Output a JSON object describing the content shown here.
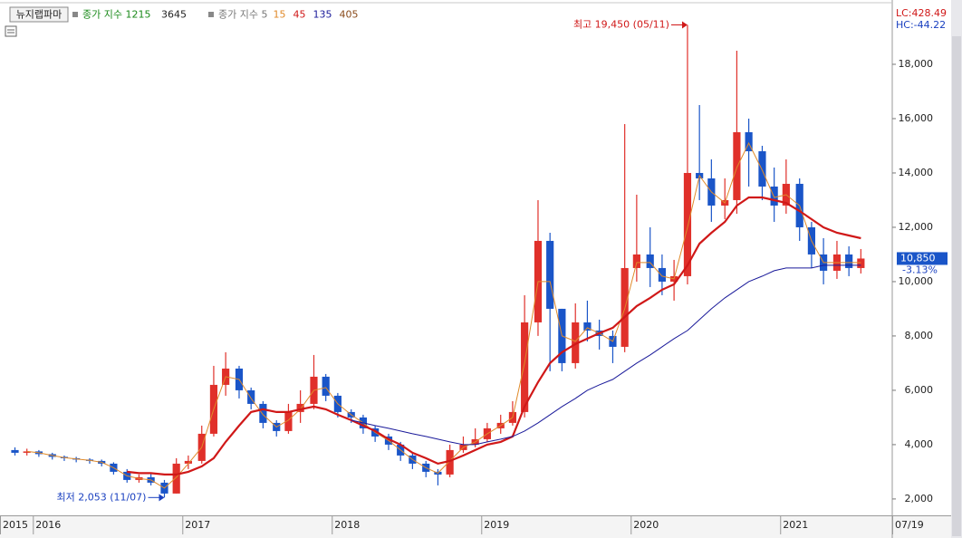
{
  "chart_data": {
    "type": "candlestick",
    "header": {
      "symbol": "뉴지랩파마",
      "index_label": "종가 지수 1215",
      "index_extra": "3645",
      "ma_label": "종가 지수 5",
      "extra_period": "405",
      "extra_period_color": "#8a4b1a"
    },
    "lc_label": "LC:428.49",
    "hc_label": "HC:-44.22",
    "annotations": {
      "high": "최고 19,450 (05/11)",
      "low": "최저 2,053 (11/07)"
    },
    "last_price_label": "10,850",
    "change_label": "-3.13%",
    "up_color": "#e0302a",
    "down_color": "#1a55c8",
    "x": [
      2015.88,
      2015.96,
      2016.04,
      2016.13,
      2016.21,
      2016.29,
      2016.38,
      2016.46,
      2016.54,
      2016.63,
      2016.71,
      2016.79,
      2016.88,
      2016.96,
      2017.04,
      2017.13,
      2017.21,
      2017.29,
      2017.38,
      2017.46,
      2017.54,
      2017.63,
      2017.71,
      2017.79,
      2017.88,
      2017.96,
      2018.04,
      2018.13,
      2018.21,
      2018.29,
      2018.38,
      2018.46,
      2018.54,
      2018.63,
      2018.71,
      2018.79,
      2018.88,
      2018.96,
      2019.04,
      2019.13,
      2019.21,
      2019.29,
      2019.38,
      2019.46,
      2019.54,
      2019.63,
      2019.71,
      2019.79,
      2019.88,
      2019.96,
      2020.04,
      2020.13,
      2020.21,
      2020.29,
      2020.38,
      2020.46,
      2020.54,
      2020.63,
      2020.71,
      2020.79,
      2020.88,
      2020.96,
      2021.04,
      2021.13,
      2021.21,
      2021.29,
      2021.38,
      2021.46,
      2021.54
    ],
    "open": [
      3800,
      3700,
      3750,
      3650,
      3550,
      3500,
      3450,
      3400,
      3300,
      3000,
      2700,
      2800,
      2600,
      2200,
      3300,
      3400,
      4400,
      6200,
      6800,
      6000,
      5500,
      4800,
      4500,
      5200,
      5500,
      6500,
      5800,
      5200,
      5000,
      4600,
      4300,
      4000,
      3600,
      3300,
      3000,
      2900,
      3800,
      4000,
      4200,
      4600,
      4800,
      5200,
      8500,
      11500,
      9000,
      7000,
      8500,
      8200,
      8000,
      7600,
      10500,
      11000,
      10500,
      10000,
      10200,
      14000,
      13800,
      12800,
      13000,
      15500,
      14800,
      13500,
      12800,
      13600,
      12000,
      11000,
      10400,
      11000,
      10500
    ],
    "high": [
      3900,
      3850,
      3800,
      3700,
      3600,
      3550,
      3500,
      3450,
      3350,
      3100,
      2900,
      2950,
      2700,
      3500,
      3600,
      4700,
      6900,
      7400,
      6900,
      6100,
      5600,
      4900,
      5500,
      6000,
      7300,
      6600,
      5900,
      5300,
      5100,
      4700,
      4400,
      4100,
      3700,
      3400,
      3100,
      4000,
      4300,
      4600,
      4800,
      5100,
      5600,
      9500,
      13000,
      11800,
      9000,
      9200,
      9300,
      8600,
      8200,
      15800,
      13200,
      12000,
      11000,
      10800,
      19450,
      16500,
      14500,
      13800,
      18500,
      16000,
      15000,
      14200,
      14500,
      13800,
      12200,
      11600,
      11500,
      11300,
      11200
    ],
    "low": [
      3600,
      3600,
      3550,
      3450,
      3400,
      3350,
      3300,
      3200,
      2900,
      2600,
      2600,
      2500,
      2053,
      2200,
      3100,
      3300,
      4300,
      5800,
      5700,
      5300,
      4600,
      4300,
      4400,
      4800,
      5300,
      5600,
      5000,
      4800,
      4400,
      4100,
      3800,
      3400,
      3100,
      2800,
      2500,
      2800,
      3700,
      3900,
      4100,
      4400,
      4700,
      5000,
      8000,
      6700,
      6700,
      6800,
      7800,
      7500,
      7000,
      7400,
      10000,
      9800,
      9500,
      9300,
      9900,
      13000,
      12200,
      12300,
      12500,
      13500,
      13000,
      12200,
      12500,
      11500,
      10500,
      9900,
      10100,
      10200,
      10300
    ],
    "close": [
      3700,
      3750,
      3650,
      3550,
      3500,
      3450,
      3400,
      3300,
      3000,
      2700,
      2800,
      2600,
      2200,
      3300,
      3400,
      4400,
      6200,
      6800,
      6000,
      5500,
      4800,
      4500,
      5200,
      5500,
      6500,
      5800,
      5200,
      5000,
      4600,
      4300,
      4000,
      3600,
      3300,
      3000,
      2900,
      3800,
      4000,
      4200,
      4600,
      4800,
      5200,
      8500,
      11500,
      9000,
      7000,
      8500,
      8200,
      8000,
      7600,
      10500,
      11000,
      10500,
      10000,
      10200,
      14000,
      13800,
      12800,
      13000,
      15500,
      14800,
      13500,
      12800,
      13600,
      12000,
      11000,
      10400,
      11000,
      10500,
      10850
    ],
    "series": [
      {
        "name": "15",
        "color": "#e08a2a",
        "width": 1,
        "values": [
          null,
          3750,
          3700,
          3600,
          3520,
          3470,
          3420,
          3350,
          3150,
          2850,
          2750,
          2700,
          2400,
          2800,
          3300,
          3900,
          5300,
          6500,
          6400,
          5700,
          5100,
          4650,
          4900,
          5300,
          6000,
          6100,
          5500,
          5100,
          4800,
          4450,
          4150,
          3800,
          3450,
          3150,
          2950,
          3400,
          3900,
          4100,
          4400,
          4700,
          5000,
          7000,
          10000,
          10000,
          8000,
          7800,
          8300,
          8100,
          7800,
          9000,
          10700,
          10700,
          10200,
          10100,
          12000,
          13900,
          13300,
          12900,
          14200,
          15100,
          14100,
          13100,
          13200,
          12800,
          11500,
          10700,
          10700,
          10700,
          10700
        ]
      },
      {
        "name": "45",
        "color": "#d01818",
        "width": 2.2,
        "values": [
          null,
          null,
          null,
          null,
          null,
          null,
          null,
          null,
          null,
          3000,
          2950,
          2950,
          2900,
          2900,
          3000,
          3200,
          3500,
          4100,
          4700,
          5200,
          5300,
          5200,
          5200,
          5300,
          5400,
          5300,
          5100,
          4900,
          4700,
          4500,
          4200,
          4000,
          3700,
          3500,
          3300,
          3400,
          3600,
          3800,
          4000,
          4100,
          4300,
          5400,
          6300,
          7000,
          7400,
          7700,
          7900,
          8100,
          8300,
          8700,
          9100,
          9400,
          9700,
          9900,
          10600,
          11400,
          11800,
          12200,
          12800,
          13100,
          13100,
          13000,
          12900,
          12600,
          12300,
          12000,
          11800,
          11700,
          11600
        ]
      },
      {
        "name": "135",
        "color": "#1a1a9a",
        "width": 1,
        "values": [
          null,
          null,
          null,
          null,
          null,
          null,
          null,
          null,
          null,
          null,
          null,
          null,
          null,
          null,
          null,
          null,
          null,
          null,
          null,
          null,
          null,
          null,
          null,
          null,
          null,
          null,
          null,
          4900,
          4800,
          4700,
          4600,
          4500,
          4400,
          4300,
          4200,
          4100,
          4000,
          4000,
          4100,
          4200,
          4300,
          4500,
          4800,
          5100,
          5400,
          5700,
          6000,
          6200,
          6400,
          6700,
          7000,
          7300,
          7600,
          7900,
          8200,
          8600,
          9000,
          9400,
          9700,
          10000,
          10200,
          10400,
          10500,
          10500,
          10500,
          10600,
          10600,
          10600,
          10600
        ]
      }
    ],
    "xlim": [
      2015.78,
      2021.75
    ],
    "xticks": [
      {
        "value": 2015.78,
        "label": "2015"
      },
      2016,
      2017,
      2018,
      2019,
      2020,
      2021,
      {
        "value": 2021.75,
        "label": "07/19"
      }
    ],
    "ylim": [
      1430,
      20100
    ],
    "yticks": [
      {
        "value": 2000,
        "label": "2,000"
      },
      {
        "value": 4000,
        "label": "4,000"
      },
      {
        "value": 6000,
        "label": "6,000"
      },
      {
        "value": 8000,
        "label": "8,000"
      },
      {
        "value": 10000,
        "label": "10,000"
      },
      {
        "value": 12000,
        "label": "12,000"
      },
      {
        "value": 14000,
        "label": "14,000"
      },
      {
        "value": 16000,
        "label": "16,000"
      },
      {
        "value": 18000,
        "label": "18,000"
      }
    ]
  }
}
